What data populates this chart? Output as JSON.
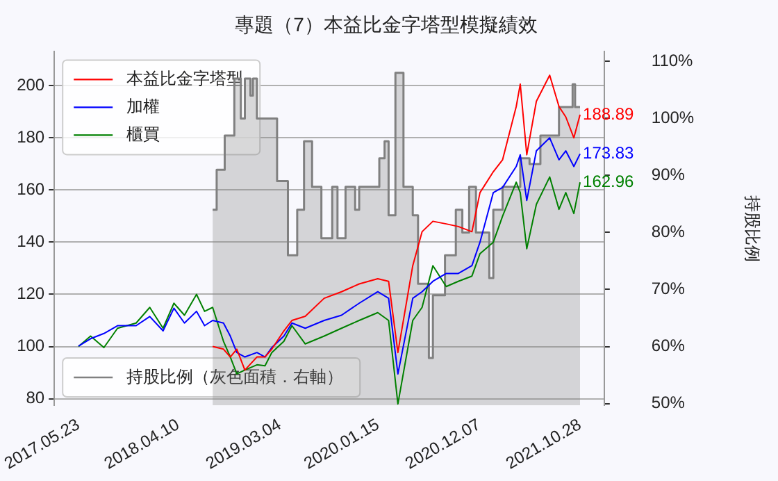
{
  "chart_data": {
    "type": "line",
    "title": "專題（7）本益比金字塔型模擬績效",
    "y2label": "持股比例",
    "x": [
      "2017-05-23",
      "2017-07-01",
      "2017-08-13",
      "2017-09-26",
      "2017-11-25",
      "2018-01-08",
      "2018-02-20",
      "2018-03-27",
      "2018-04-30",
      "2018-06-08",
      "2018-07-04",
      "2018-07-30",
      "2018-09-03",
      "2018-09-25",
      "2018-10-16",
      "2018-11-11",
      "2018-12-20",
      "2019-01-15",
      "2019-02-06",
      "2019-03-17",
      "2019-04-12",
      "2019-05-25",
      "2019-07-25",
      "2019-09-19",
      "2019-11-15",
      "2020-01-14",
      "2020-02-18",
      "2020-03-19",
      "2020-05-06",
      "2020-06-05",
      "2020-07-10",
      "2020-08-22",
      "2020-09-30",
      "2020-11-13",
      "2020-12-09",
      "2021-01-21",
      "2021-02-20",
      "2021-04-05",
      "2021-04-18",
      "2021-05-09",
      "2021-06-09",
      "2021-07-22",
      "2021-08-21",
      "2021-09-12",
      "2021-10-08",
      "2021-10-28"
    ],
    "series": [
      {
        "name": "持股比例（灰色面積．右軸）",
        "type": "area",
        "axis": "y2",
        "color": "#808080",
        "x": [
          "2018-07-30",
          "2018-08-12",
          "2018-08-12",
          "2018-09-07",
          "2018-09-07",
          "2018-10-08",
          "2018-10-08",
          "2018-10-29",
          "2018-10-29",
          "2018-11-11",
          "2018-11-11",
          "2018-11-29",
          "2018-11-29",
          "2018-12-07",
          "2018-12-07",
          "2018-12-20",
          "2018-12-20",
          "2019-02-23",
          "2019-02-23",
          "2019-03-30",
          "2019-03-30",
          "2019-04-29",
          "2019-04-29",
          "2019-05-21",
          "2019-05-21",
          "2019-06-16",
          "2019-06-16",
          "2019-07-16",
          "2019-07-16",
          "2019-08-20",
          "2019-08-20",
          "2019-09-06",
          "2019-09-06",
          "2019-10-02",
          "2019-10-02",
          "2019-11-02",
          "2019-11-02",
          "2019-11-15",
          "2019-11-15",
          "2020-01-19",
          "2020-01-19",
          "2020-02-05",
          "2020-02-05",
          "2020-02-18",
          "2020-02-18",
          "2020-03-11",
          "2020-03-11",
          "2020-04-06",
          "2020-04-06",
          "2020-05-06",
          "2020-05-06",
          "2020-05-23",
          "2020-05-23",
          "2020-06-27",
          "2020-06-27",
          "2020-07-10",
          "2020-07-10",
          "2020-08-18",
          "2020-08-18",
          "2020-09-22",
          "2020-09-22",
          "2020-10-13",
          "2020-10-13",
          "2020-11-04",
          "2020-11-04",
          "2020-11-26",
          "2020-11-26",
          "2021-01-08",
          "2021-01-08",
          "2021-01-21",
          "2021-01-21",
          "2021-02-20",
          "2021-02-20",
          "2021-04-18",
          "2021-04-18",
          "2021-05-18",
          "2021-05-18",
          "2021-06-22",
          "2021-06-22",
          "2021-08-21",
          "2021-08-21",
          "2021-10-04",
          "2021-10-04",
          "2021-10-12",
          "2021-10-12",
          "2021-10-28"
        ],
        "values": [
          84,
          84,
          91,
          91,
          97,
          97,
          107,
          107,
          100,
          100,
          107,
          107,
          104,
          104,
          107,
          107,
          100,
          100,
          89,
          89,
          76,
          76,
          84,
          84,
          96,
          96,
          88,
          88,
          79,
          79,
          88,
          88,
          79,
          79,
          88,
          88,
          84,
          84,
          88,
          88,
          93,
          93,
          96,
          96,
          83,
          83,
          108,
          108,
          88,
          88,
          83,
          83,
          71,
          71,
          58,
          58,
          69,
          69,
          76,
          76,
          84,
          84,
          80,
          80,
          88,
          88,
          80,
          80,
          72,
          72,
          84,
          84,
          88,
          88,
          93,
          93,
          92,
          92,
          97,
          97,
          102,
          102,
          106,
          106,
          102,
          102
        ]
      },
      {
        "name": "本益比金字塔型",
        "color": "#ff0000",
        "values": [
          null,
          null,
          null,
          null,
          null,
          null,
          null,
          null,
          null,
          null,
          null,
          100,
          99,
          96,
          99,
          91,
          96,
          96,
          99,
          106,
          110,
          111.6,
          118.5,
          121,
          124,
          126,
          125,
          97.7,
          131,
          144,
          148,
          147,
          146,
          144,
          159,
          167,
          171.6,
          192,
          200.6,
          173.5,
          194,
          204,
          192,
          188,
          180,
          188.89
        ],
        "value_labels": [
          null,
          null,
          null,
          null,
          null,
          null,
          null,
          null,
          null,
          null,
          null,
          null,
          null,
          null,
          null,
          null,
          null,
          null,
          null,
          null,
          null,
          null,
          null,
          null,
          null,
          null,
          null,
          null,
          null,
          null,
          null,
          null,
          null,
          null,
          null,
          null,
          null,
          null,
          null,
          null,
          null,
          null,
          null,
          null,
          null,
          "188.89"
        ]
      },
      {
        "name": "加權",
        "color": "#0000ff",
        "values": [
          100.2,
          103,
          105,
          108,
          108,
          111.5,
          106,
          114.7,
          109,
          113.5,
          108,
          110,
          109,
          104,
          97.7,
          96,
          97.7,
          96,
          99.6,
          104,
          109,
          107,
          110,
          112,
          116.6,
          121,
          118.5,
          89.5,
          118.5,
          121,
          125,
          128,
          128,
          131,
          140,
          159,
          161,
          169,
          173.5,
          156,
          175,
          180,
          171.6,
          175,
          169,
          173.83
        ],
        "value_labels": [
          null,
          null,
          null,
          null,
          null,
          null,
          null,
          null,
          null,
          null,
          null,
          null,
          null,
          null,
          null,
          null,
          null,
          null,
          null,
          null,
          null,
          null,
          null,
          null,
          null,
          null,
          null,
          null,
          null,
          null,
          null,
          null,
          null,
          null,
          null,
          null,
          null,
          null,
          null,
          null,
          null,
          null,
          null,
          null,
          null,
          "173.83"
        ]
      },
      {
        "name": "櫃買",
        "color": "#008000",
        "values": [
          100,
          104,
          99.6,
          107,
          109,
          115,
          107,
          116.6,
          112,
          120,
          113.5,
          115,
          102,
          96,
          89.5,
          91,
          93,
          92.6,
          97.7,
          102,
          108,
          101,
          104,
          107,
          110,
          113,
          110,
          78,
          110,
          115,
          131,
          123,
          125,
          127,
          135.6,
          140,
          150,
          163,
          159,
          137.5,
          154.5,
          165,
          152.6,
          159,
          151,
          162.96
        ],
        "value_labels": [
          null,
          null,
          null,
          null,
          null,
          null,
          null,
          null,
          null,
          null,
          null,
          null,
          null,
          null,
          null,
          null,
          null,
          null,
          null,
          null,
          null,
          null,
          null,
          null,
          null,
          null,
          null,
          null,
          null,
          null,
          null,
          null,
          null,
          null,
          null,
          null,
          null,
          null,
          null,
          null,
          null,
          null,
          null,
          null,
          null,
          "162.96"
        ]
      }
    ],
    "xlim": [
      "2017-03-06",
      "2022-01-14"
    ],
    "xticks": [
      {
        "value": "2017-05-23",
        "label": "2017.05.23"
      },
      {
        "value": "2018-04-10",
        "label": "2018.04.10"
      },
      {
        "value": "2019-03-04",
        "label": "2019.03.04"
      },
      {
        "value": "2020-01-15",
        "label": "2020.01.15"
      },
      {
        "value": "2020-12-07",
        "label": "2020.12.07"
      },
      {
        "value": "2021-10-28",
        "label": "2021.10.28"
      }
    ],
    "ylim": [
      77.5,
      213
    ],
    "yticks": [
      80,
      100,
      120,
      140,
      160,
      180,
      200
    ],
    "y2lim": [
      49.7,
      111.7
    ],
    "y2ticks": [
      {
        "value": 50,
        "label": "50%"
      },
      {
        "value": 60,
        "label": "60%"
      },
      {
        "value": 70,
        "label": "70%"
      },
      {
        "value": 80,
        "label": "80%"
      },
      {
        "value": 90,
        "label": "90%"
      },
      {
        "value": 100,
        "label": "100%"
      },
      {
        "value": 110,
        "label": "110%"
      }
    ],
    "grid": "y",
    "legend": "top left"
  }
}
